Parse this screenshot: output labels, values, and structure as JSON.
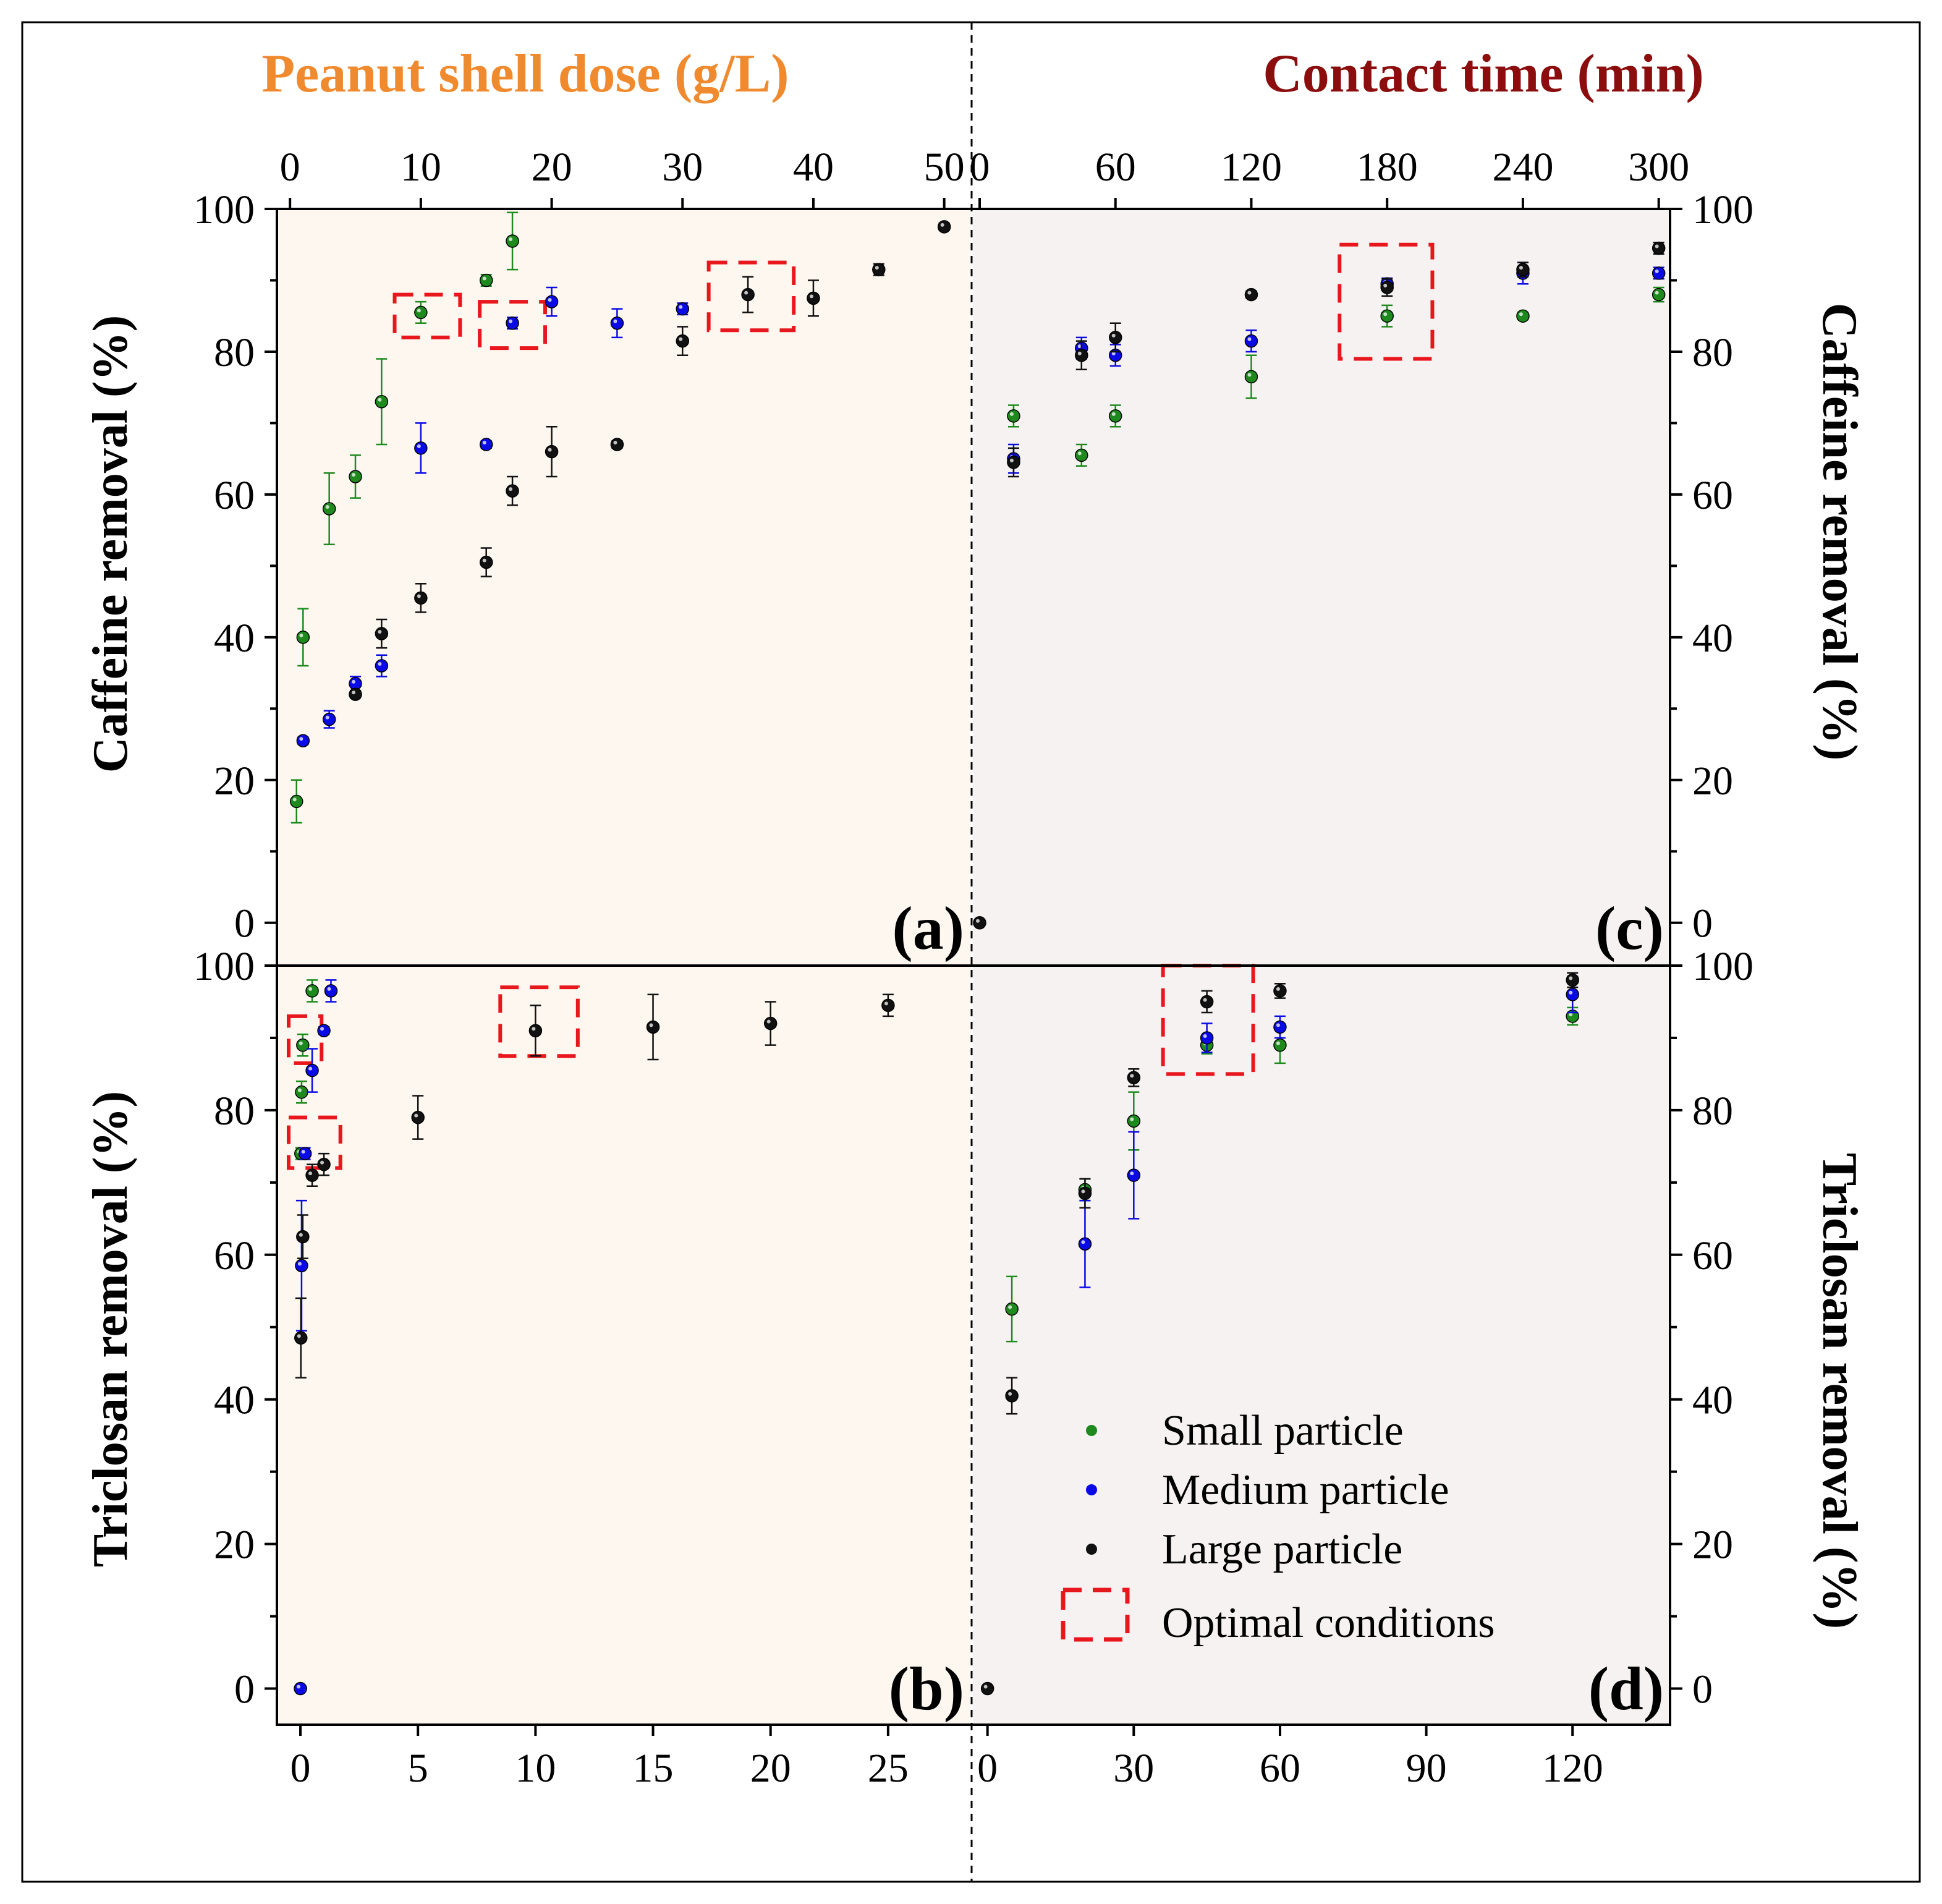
{
  "colors": {
    "small": "#1e8a1e",
    "medium": "#0a0ae6",
    "large": "#111111",
    "optimal": "#e8161d",
    "dose_title": "#f08a2e",
    "time_title": "#8b0d0d",
    "bg_left": "#fdf7ef",
    "bg_right": "#f7f2f2"
  },
  "titles": {
    "dose": "Peanut shell dose (g/L)",
    "time": "Contact time (min)"
  },
  "y_labels": {
    "caffeine": "Caffeine removal (%)",
    "triclosan": "Triclosan removal (%)"
  },
  "legend": {
    "small": "Small particle",
    "medium": "Medium particle",
    "large": "Large particle",
    "optimal": "Optimal conditions"
  },
  "chart_data": [
    {
      "id": "a",
      "type": "scatter",
      "panel_label": "(a)",
      "xlabel": "Peanut shell dose (g/L)",
      "ylabel": "Caffeine removal (%)",
      "xlim": [
        -1.0,
        52.0
      ],
      "ylim": [
        -6,
        100
      ],
      "xticks": [
        0,
        10,
        20,
        30,
        40,
        50
      ],
      "yticks": [
        0,
        20,
        40,
        60,
        80,
        100
      ],
      "series": [
        {
          "name": "Small particle",
          "key": "small",
          "points": [
            [
              0.5,
              17,
              3
            ],
            [
              1,
              40,
              4
            ],
            [
              3,
              58,
              5
            ],
            [
              5,
              62.5,
              3
            ],
            [
              7,
              73,
              6
            ],
            [
              10,
              85.5,
              1.5
            ],
            [
              15,
              90,
              0.8
            ],
            [
              17,
              95.5,
              4
            ]
          ]
        },
        {
          "name": "Medium particle",
          "key": "medium",
          "points": [
            [
              1,
              25.5,
              0.5
            ],
            [
              3,
              28.5,
              1.2
            ],
            [
              5,
              33.5,
              1
            ],
            [
              7,
              36,
              1.5
            ],
            [
              10,
              66.5,
              3.5
            ],
            [
              15,
              67,
              0.5
            ],
            [
              17,
              84,
              0.8
            ],
            [
              20,
              87,
              2
            ],
            [
              25,
              84,
              2
            ],
            [
              30,
              86,
              0.8
            ]
          ]
        },
        {
          "name": "Large particle",
          "key": "large",
          "points": [
            [
              5,
              32,
              0.5
            ],
            [
              7,
              40.5,
              2
            ],
            [
              10,
              45.5,
              2
            ],
            [
              15,
              50.5,
              2
            ],
            [
              17,
              60.5,
              2
            ],
            [
              20,
              66,
              3.5
            ],
            [
              25,
              67,
              0.5
            ],
            [
              30,
              81.5,
              2
            ],
            [
              35,
              88,
              2.5
            ],
            [
              40,
              87.5,
              2.5
            ],
            [
              45,
              91.5,
              0.8
            ],
            [
              50,
              97.5,
              0.5
            ]
          ]
        }
      ],
      "optimal_boxes": [
        [
          8,
          82,
          13,
          88
        ],
        [
          14.5,
          80.5,
          19.5,
          87
        ],
        [
          32,
          83,
          38.5,
          92.5
        ]
      ]
    },
    {
      "id": "b",
      "type": "scatter",
      "panel_label": "(b)",
      "xlabel": "Peanut shell dose (g/L)",
      "ylabel": "Triclosan removal (%)",
      "xlim": [
        -1.0,
        28.5
      ],
      "ylim": [
        -5,
        100
      ],
      "xticks": [
        0,
        5,
        10,
        15,
        20,
        25
      ],
      "yticks": [
        0,
        20,
        40,
        60,
        80,
        100
      ],
      "series": [
        {
          "name": "Small particle",
          "key": "small",
          "points": [
            [
              0.02,
              74,
              0.8
            ],
            [
              0.05,
              82.5,
              1.5
            ],
            [
              0.1,
              89,
              1.5
            ],
            [
              0.5,
              96.5,
              1.5
            ]
          ]
        },
        {
          "name": "Medium particle",
          "key": "medium",
          "points": [
            [
              0,
              0,
              0
            ],
            [
              0.05,
              58.5,
              9
            ],
            [
              0.2,
              74,
              0.8
            ],
            [
              0.5,
              85.5,
              3
            ],
            [
              1,
              91,
              0.5
            ],
            [
              1.3,
              96.5,
              1.5
            ]
          ]
        },
        {
          "name": "Large particle",
          "key": "large",
          "points": [
            [
              0.02,
              48.5,
              5.5
            ],
            [
              0.1,
              62.5,
              3
            ],
            [
              0.5,
              71,
              1.5
            ],
            [
              1,
              72.5,
              1.5
            ],
            [
              5,
              79,
              3
            ],
            [
              10,
              91,
              3.5
            ],
            [
              15,
              91.5,
              4.5
            ],
            [
              20,
              92,
              3
            ],
            [
              25,
              94.5,
              1.5
            ]
          ]
        }
      ],
      "optimal_boxes": [
        [
          -0.5,
          72,
          1.7,
          79
        ],
        [
          -0.5,
          86.5,
          0.9,
          93
        ],
        [
          8.5,
          87.5,
          11.8,
          97
        ]
      ]
    },
    {
      "id": "c",
      "type": "scatter",
      "panel_label": "(c)",
      "xlabel": "Contact time (min)",
      "ylabel": "Caffeine removal (%)",
      "xlim": [
        -3,
        305
      ],
      "ylim": [
        -6,
        100
      ],
      "xticks": [
        0,
        60,
        120,
        180,
        240,
        300
      ],
      "yticks": [
        0,
        20,
        40,
        60,
        80,
        100
      ],
      "series": [
        {
          "name": "Small particle",
          "key": "small",
          "points": [
            [
              15,
              71,
              1.5
            ],
            [
              45,
              65.5,
              1.5
            ],
            [
              60,
              71,
              1.5
            ],
            [
              120,
              76.5,
              3
            ],
            [
              180,
              85,
              1.5
            ],
            [
              240,
              85,
              0.5
            ],
            [
              300,
              88,
              1
            ]
          ]
        },
        {
          "name": "Medium particle",
          "key": "medium",
          "points": [
            [
              15,
              65,
              2
            ],
            [
              45,
              80.5,
              1.5
            ],
            [
              60,
              79.5,
              1.5
            ],
            [
              120,
              81.5,
              1.5
            ],
            [
              180,
              89.5,
              0.8
            ],
            [
              240,
              91,
              1.5
            ],
            [
              300,
              91,
              0.8
            ]
          ]
        },
        {
          "name": "Large particle",
          "key": "large",
          "points": [
            [
              0,
              0,
              0
            ],
            [
              15,
              64.5,
              2
            ],
            [
              45,
              79.5,
              2
            ],
            [
              60,
              82,
              2
            ],
            [
              120,
              88,
              0.5
            ],
            [
              180,
              89,
              1.2
            ],
            [
              240,
              91.5,
              1
            ],
            [
              300,
              94.5,
              0.8
            ]
          ]
        }
      ],
      "optimal_boxes": [
        [
          159,
          79,
          200,
          95
        ]
      ]
    },
    {
      "id": "d",
      "type": "scatter",
      "panel_label": "(d)",
      "xlabel": "Contact time (min)",
      "ylabel": "Triclosan removal (%)",
      "xlim": [
        -3,
        140
      ],
      "ylim": [
        -5,
        100
      ],
      "xticks": [
        0,
        30,
        60,
        90,
        120
      ],
      "yticks": [
        0,
        20,
        40,
        60,
        80,
        100
      ],
      "series": [
        {
          "name": "Small particle",
          "key": "small",
          "points": [
            [
              5,
              52.5,
              4.5
            ],
            [
              20,
              69,
              1.5
            ],
            [
              30,
              78.5,
              4
            ],
            [
              45,
              89,
              1.2
            ],
            [
              60,
              89,
              2.5
            ],
            [
              120,
              93,
              1.2
            ]
          ]
        },
        {
          "name": "Medium particle",
          "key": "medium",
          "points": [
            [
              20,
              61.5,
              6
            ],
            [
              30,
              71,
              6
            ],
            [
              45,
              90,
              2
            ],
            [
              60,
              91.5,
              1.5
            ],
            [
              120,
              96,
              2.5
            ]
          ]
        },
        {
          "name": "Large particle",
          "key": "large",
          "points": [
            [
              0,
              0,
              0
            ],
            [
              5,
              40.5,
              2.5
            ],
            [
              20,
              68.5,
              2
            ],
            [
              30,
              84.5,
              1.2
            ],
            [
              45,
              95,
              1.5
            ],
            [
              60,
              96.5,
              1
            ],
            [
              120,
              98,
              1
            ]
          ]
        }
      ],
      "optimal_boxes": [
        [
          36,
          85,
          54.5,
          100
        ]
      ]
    }
  ]
}
